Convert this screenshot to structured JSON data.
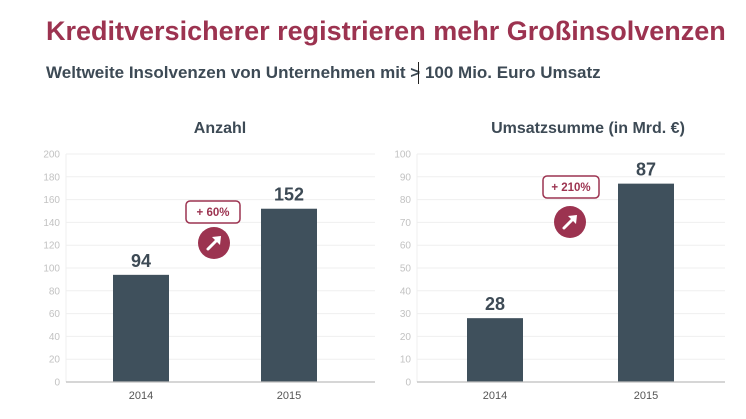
{
  "header": {
    "title": "Kreditversicherer registrieren mehr Großinsolvenzen",
    "subtitle": "Weltweite Insolvenzen von Unternehmen mit > 100 Mio. Euro Umsatz"
  },
  "colors": {
    "bar": "#3f505c",
    "accent": "#9c3350",
    "tick": "#c2c2c2",
    "grid": "#efefef",
    "axis": "#bdbdbd"
  },
  "chart_data": [
    {
      "type": "bar",
      "title": "Anzahl",
      "categories": [
        "2014",
        "2015"
      ],
      "values": [
        94,
        152
      ],
      "data_labels": [
        "94",
        "152"
      ],
      "ylim": [
        0,
        200
      ],
      "yticks": [
        0,
        20,
        40,
        60,
        80,
        100,
        120,
        140,
        160,
        180,
        200
      ],
      "grid": true,
      "annotation": {
        "text": "+ 60%",
        "icon": "arrow-up-right-icon"
      }
    },
    {
      "type": "bar",
      "title": "Umsatzsumme (in Mrd. €)",
      "categories": [
        "2014",
        "2015"
      ],
      "values": [
        28,
        87
      ],
      "data_labels": [
        "28",
        "87"
      ],
      "ylim": [
        0,
        100
      ],
      "yticks": [
        0,
        10,
        20,
        30,
        40,
        50,
        60,
        70,
        80,
        90,
        100
      ],
      "grid": true,
      "annotation": {
        "text": "+ 210%",
        "icon": "arrow-up-right-icon"
      }
    }
  ]
}
